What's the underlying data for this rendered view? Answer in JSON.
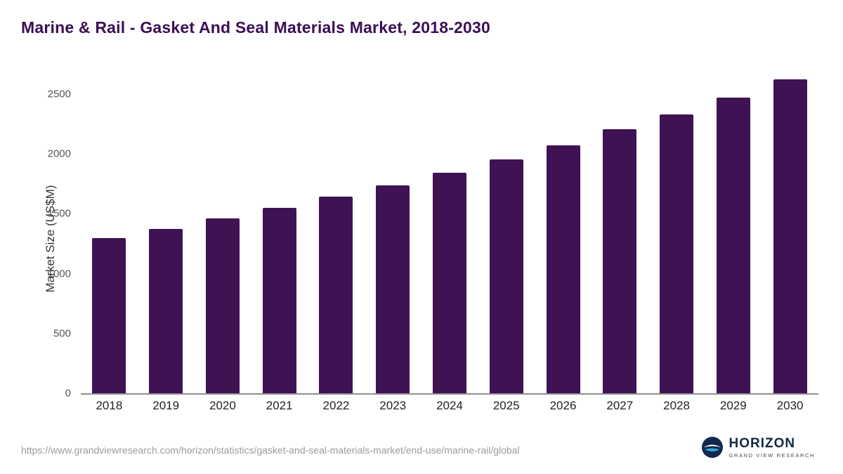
{
  "title": "Marine & Rail - Gasket And Seal Materials Market, 2018-2030",
  "colors": {
    "bar": "#3f1253",
    "title_text": "#3b0e56",
    "axis_line": "#8f8f8f"
  },
  "chart_data": {
    "type": "bar",
    "title": "Marine & Rail - Gasket And Seal Materials Market, 2018-2030",
    "xlabel": "",
    "ylabel": "Market Size (US$M)",
    "categories": [
      "2018",
      "2019",
      "2020",
      "2021",
      "2022",
      "2023",
      "2024",
      "2025",
      "2026",
      "2027",
      "2028",
      "2029",
      "2030"
    ],
    "values": [
      1300,
      1375,
      1460,
      1550,
      1645,
      1740,
      1845,
      1955,
      2070,
      2205,
      2330,
      2470,
      2625
    ],
    "yticks": [
      0,
      500,
      1000,
      1500,
      2000,
      2500
    ],
    "ylim": [
      0,
      2700
    ],
    "grid": false,
    "legend": "none"
  },
  "footer": {
    "url": "https://www.grandviewresearch.com/horizon/statistics/gasket-and-seal-materials-market/end-use/marine-rail/global",
    "logo_title": "HORIZON",
    "logo_subtitle": "GRAND VIEW RESEARCH"
  }
}
